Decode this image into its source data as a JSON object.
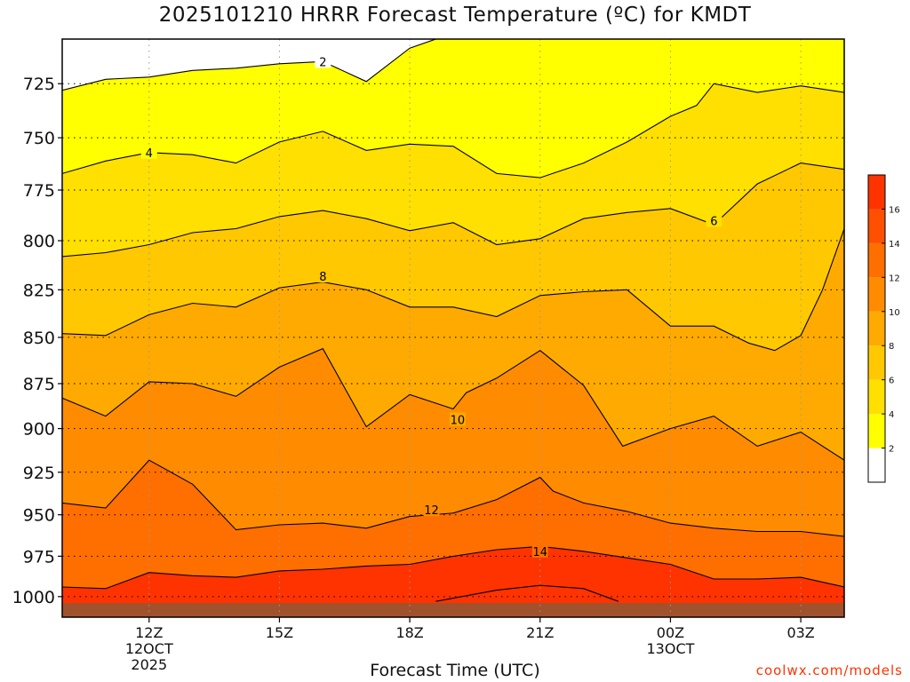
{
  "title": "2025101210 HRRR Forecast Temperature (ºC) for KMDT",
  "xlabel": "Forecast Time (UTC)",
  "credit": "coolwx.com/models",
  "chart_data": {
    "type": "contour",
    "y_ticks": [
      725,
      750,
      775,
      800,
      825,
      850,
      875,
      900,
      925,
      950,
      975,
      1000
    ],
    "ylim": [
      1004,
      705
    ],
    "y_scale": "log-pressure",
    "x_ticks": [
      {
        "label": "12Z",
        "sub": [
          "12OCT",
          "2025"
        ],
        "hour": 12
      },
      {
        "label": "15Z",
        "hour": 15
      },
      {
        "label": "18Z",
        "hour": 18
      },
      {
        "label": "21Z",
        "hour": 21
      },
      {
        "label": "00Z",
        "sub": [
          "13OCT"
        ],
        "hour": 24
      },
      {
        "label": "03Z",
        "hour": 27
      }
    ],
    "xlim": [
      10,
      28
    ],
    "grid": true,
    "colorbar": {
      "levels": [
        2,
        4,
        6,
        8,
        10,
        12,
        14,
        16
      ],
      "tick_labels": [
        "2",
        "4",
        "6",
        "8",
        "10",
        "12",
        "14",
        "16"
      ],
      "colors": [
        "#ffffff",
        "#ffff00",
        "#ffe000",
        "#ffc800",
        "#ffaa00",
        "#ff8c00",
        "#ff6f00",
        "#ff4f00",
        "#ff3300"
      ]
    },
    "contours": [
      {
        "value": 2,
        "label": "2",
        "label_at": [
          16,
          715
        ],
        "points": [
          [
            10,
            728
          ],
          [
            11,
            723
          ],
          [
            12,
            722
          ],
          [
            13,
            719
          ],
          [
            14,
            718
          ],
          [
            15,
            716
          ],
          [
            16,
            715
          ],
          [
            17,
            724
          ],
          [
            18,
            709
          ],
          [
            19.2,
            701
          ]
        ]
      },
      {
        "value": 4,
        "label": "4",
        "label_at": [
          12,
          757
        ],
        "points": [
          [
            10,
            767
          ],
          [
            11,
            761
          ],
          [
            12,
            757
          ],
          [
            13,
            758
          ],
          [
            14,
            762
          ],
          [
            15,
            752
          ],
          [
            16,
            747
          ],
          [
            17,
            756
          ],
          [
            18,
            753
          ],
          [
            19,
            754
          ],
          [
            20,
            767
          ],
          [
            21,
            769
          ],
          [
            22,
            762
          ],
          [
            23,
            752
          ],
          [
            24,
            740
          ],
          [
            24.6,
            735
          ],
          [
            25,
            725
          ],
          [
            26,
            729
          ],
          [
            27,
            726
          ],
          [
            28,
            729
          ]
        ]
      },
      {
        "value": 6,
        "label": "6",
        "label_at": [
          25,
          790
        ],
        "points": [
          [
            10,
            808
          ],
          [
            11,
            806
          ],
          [
            12,
            802
          ],
          [
            13,
            796
          ],
          [
            14,
            794
          ],
          [
            15,
            788
          ],
          [
            16,
            785
          ],
          [
            17,
            789
          ],
          [
            18,
            795
          ],
          [
            19,
            791
          ],
          [
            20,
            802
          ],
          [
            21,
            799
          ],
          [
            22,
            789
          ],
          [
            23,
            786
          ],
          [
            24,
            784
          ],
          [
            25,
            792
          ],
          [
            26,
            772
          ],
          [
            27,
            762
          ],
          [
            28,
            765
          ]
        ]
      },
      {
        "value": 8,
        "label": "8",
        "label_at": [
          16,
          818
        ],
        "points": [
          [
            10,
            848
          ],
          [
            11,
            849
          ],
          [
            12,
            838
          ],
          [
            13,
            832
          ],
          [
            14,
            834
          ],
          [
            15,
            824
          ],
          [
            16,
            821
          ],
          [
            17,
            825
          ],
          [
            18,
            834
          ],
          [
            19,
            834
          ],
          [
            20,
            839
          ],
          [
            21,
            828
          ],
          [
            22,
            826
          ],
          [
            23,
            825
          ],
          [
            24,
            844
          ],
          [
            25,
            844
          ],
          [
            25.8,
            853
          ],
          [
            26.4,
            857
          ],
          [
            27,
            849
          ],
          [
            27.5,
            825
          ],
          [
            28,
            794
          ]
        ]
      },
      {
        "value": 10,
        "label": "10",
        "label_at": [
          19.1,
          895
        ],
        "points": [
          [
            10,
            883
          ],
          [
            11,
            893
          ],
          [
            12,
            874
          ],
          [
            13,
            875
          ],
          [
            14,
            882
          ],
          [
            15,
            866
          ],
          [
            16,
            856
          ],
          [
            17,
            899
          ],
          [
            18,
            881
          ],
          [
            19,
            889
          ],
          [
            19.3,
            880
          ],
          [
            20,
            872
          ],
          [
            21,
            857
          ],
          [
            22,
            876
          ],
          [
            22.9,
            910
          ],
          [
            24,
            900
          ],
          [
            25,
            893
          ],
          [
            26,
            910
          ],
          [
            27,
            902
          ],
          [
            28,
            918
          ]
        ]
      },
      {
        "value": 12,
        "label": "12",
        "label_at": [
          18.5,
          947
        ],
        "points": [
          [
            10,
            943
          ],
          [
            11,
            946
          ],
          [
            12,
            918
          ],
          [
            13,
            932
          ],
          [
            14,
            959
          ],
          [
            15,
            956
          ],
          [
            16,
            955
          ],
          [
            17,
            958
          ],
          [
            18,
            951
          ],
          [
            19,
            949
          ],
          [
            20,
            941
          ],
          [
            21,
            928
          ],
          [
            21.3,
            936
          ],
          [
            22,
            943
          ],
          [
            23,
            948
          ],
          [
            24,
            955
          ],
          [
            25,
            958
          ],
          [
            26,
            960
          ],
          [
            27,
            960
          ],
          [
            28,
            963
          ]
        ]
      },
      {
        "value": 14,
        "label": "14",
        "label_at": [
          21,
          972
        ],
        "points": [
          [
            10,
            994
          ],
          [
            11,
            995
          ],
          [
            12,
            985
          ],
          [
            13,
            987
          ],
          [
            14,
            988
          ],
          [
            15,
            984
          ],
          [
            16,
            983
          ],
          [
            17,
            981
          ],
          [
            18,
            980
          ],
          [
            19,
            975
          ],
          [
            20,
            971
          ],
          [
            21,
            969
          ],
          [
            22,
            972
          ],
          [
            23,
            976
          ],
          [
            24,
            980
          ],
          [
            25,
            989
          ],
          [
            26,
            989
          ],
          [
            27,
            988
          ],
          [
            28,
            994
          ]
        ]
      },
      {
        "value": 16,
        "label": "",
        "label_at": null,
        "points": [
          [
            18.6,
            1003
          ],
          [
            19,
            1001
          ],
          [
            20,
            996
          ],
          [
            21,
            993
          ],
          [
            22,
            995
          ],
          [
            22.8,
            1003
          ]
        ]
      }
    ]
  }
}
